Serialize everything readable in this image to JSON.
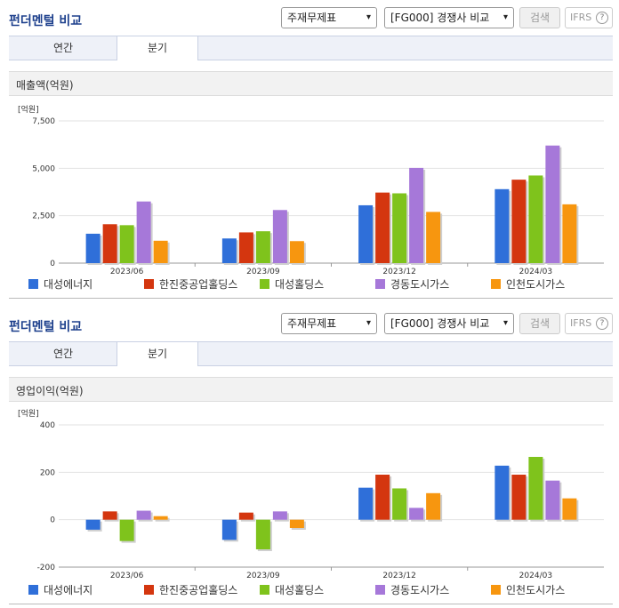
{
  "panels": [
    {
      "header": {
        "title": "펀더멘털 비교",
        "select_statement": "주재무제표",
        "select_compare": "[FG000] 경쟁사 비교",
        "search_label": "검색",
        "ifrs_label": "IFRS",
        "help_label": "?"
      },
      "tabs": {
        "annual": "연간",
        "quarterly": "분기"
      },
      "section_title": "매출액(억원)"
    },
    {
      "header": {
        "title": "펀더멘털 비교",
        "select_statement": "주재무제표",
        "select_compare": "[FG000] 경쟁사 비교",
        "search_label": "검색",
        "ifrs_label": "IFRS",
        "help_label": "?"
      },
      "tabs": {
        "annual": "연간",
        "quarterly": "분기"
      },
      "section_title": "영업이익(억원)"
    }
  ],
  "colors": [
    "#2f6fd9",
    "#d4360f",
    "#7fc31c",
    "#a678d9",
    "#f7960f"
  ],
  "chart_data": [
    {
      "type": "bar",
      "unit_label": "[억원]",
      "categories": [
        "2023/06",
        "2023/09",
        "2023/12",
        "2024/03"
      ],
      "ylim": [
        0,
        7500
      ],
      "yticks": [
        0,
        2500,
        5000,
        7500
      ],
      "ytick_labels": [
        "0",
        "2,500",
        "5,000",
        "7,500"
      ],
      "grid": true,
      "legend_position": "bottom",
      "series": [
        {
          "name": "대성에너지",
          "values": [
            1550,
            1300,
            3050,
            3900
          ]
        },
        {
          "name": "한진중공업홀딩스",
          "values": [
            2050,
            1620,
            3720,
            4400
          ]
        },
        {
          "name": "대성홀딩스",
          "values": [
            2000,
            1680,
            3680,
            4620
          ]
        },
        {
          "name": "경동도시가스",
          "values": [
            3250,
            2800,
            5020,
            6200
          ]
        },
        {
          "name": "인천도시가스",
          "values": [
            1180,
            1160,
            2700,
            3100
          ]
        }
      ]
    },
    {
      "type": "bar",
      "unit_label": "[억원]",
      "categories": [
        "2023/06",
        "2023/09",
        "2023/12",
        "2024/03"
      ],
      "ylim": [
        -200,
        400
      ],
      "yticks": [
        -200,
        0,
        200,
        400
      ],
      "ytick_labels": [
        "-200",
        "0",
        "200",
        "400"
      ],
      "grid": true,
      "legend_position": "bottom",
      "series": [
        {
          "name": "대성에너지",
          "values": [
            -42,
            -85,
            135,
            228
          ]
        },
        {
          "name": "한진중공업홀딩스",
          "values": [
            35,
            30,
            190,
            190
          ]
        },
        {
          "name": "대성홀딩스",
          "values": [
            -90,
            -125,
            132,
            265
          ]
        },
        {
          "name": "경동도시가스",
          "values": [
            38,
            35,
            50,
            165
          ]
        },
        {
          "name": "인천도시가스",
          "values": [
            15,
            -35,
            112,
            90
          ]
        }
      ]
    }
  ]
}
